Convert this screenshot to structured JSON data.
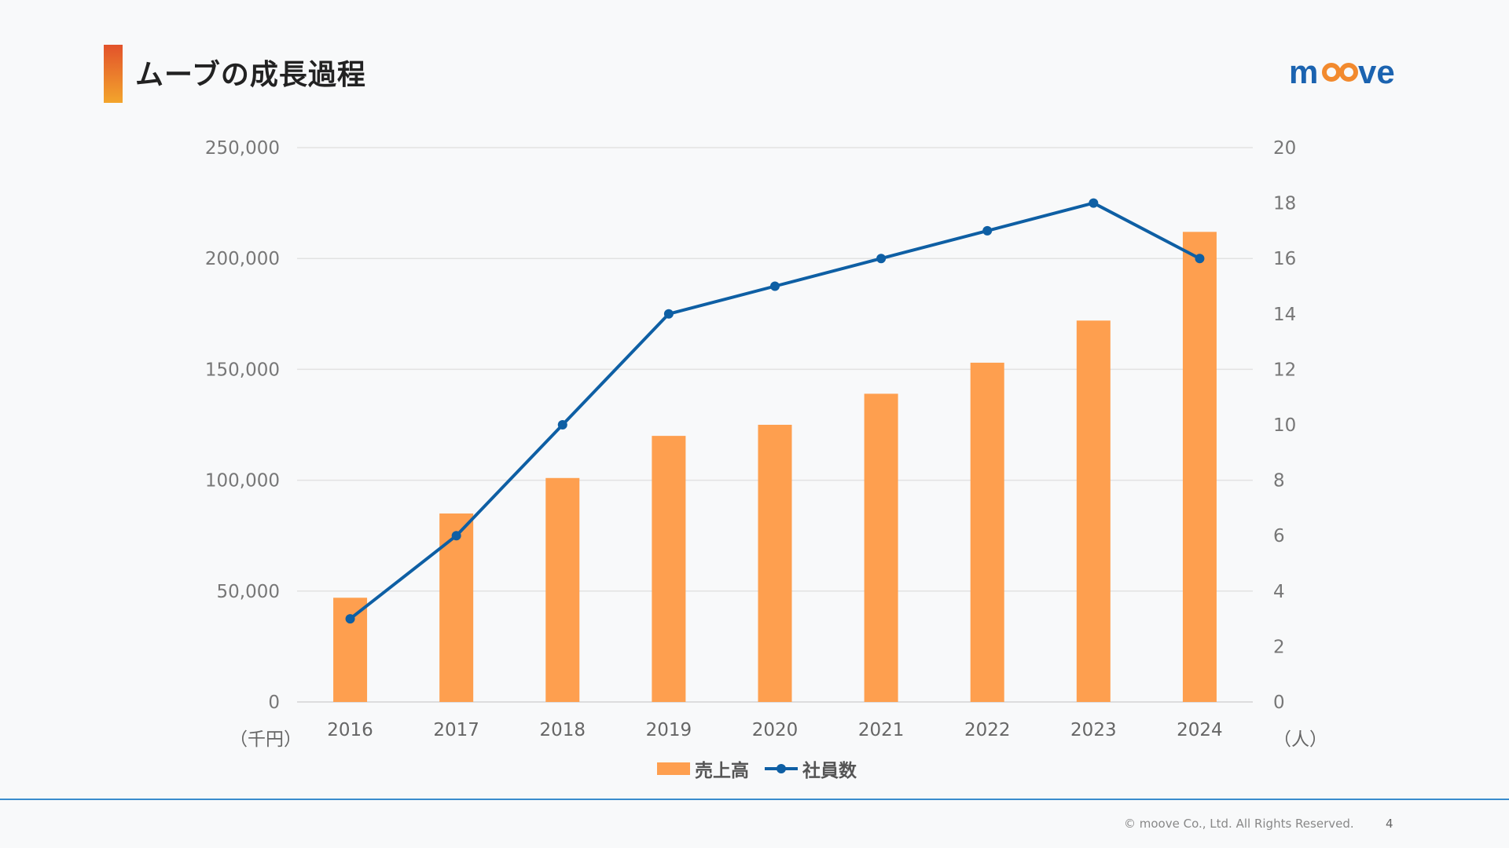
{
  "page": {
    "title": "ムーブの成長過程",
    "logo_text": "moove",
    "footer": {
      "copyright": "© moove Co., Ltd. All Rights Reserved.",
      "page_number": "4"
    }
  },
  "colors": {
    "bar": "#fe9f4f",
    "line": "#0e5fa4",
    "title_accent_top": "#e2522b",
    "title_accent_bottom": "#f3a52c",
    "logo_blue": "#1b63b0",
    "logo_orange": "#f28a2e",
    "footer_rule": "#3a8ccd"
  },
  "chart_data": {
    "type": "bar",
    "categories": [
      "2016",
      "2017",
      "2018",
      "2019",
      "2020",
      "2021",
      "2022",
      "2023",
      "2024"
    ],
    "series": [
      {
        "name": "売上高",
        "type": "bar",
        "axis": "left",
        "values": [
          47000,
          85000,
          101000,
          120000,
          125000,
          139000,
          153000,
          172000,
          212000
        ]
      },
      {
        "name": "社員数",
        "type": "line",
        "axis": "right",
        "values": [
          3,
          6,
          10,
          14,
          15,
          16,
          17,
          18,
          16
        ]
      }
    ],
    "y_left": {
      "range": [
        0,
        250000
      ],
      "ticks": [
        "0",
        "50,000",
        "100,000",
        "150,000",
        "200,000",
        "250,000"
      ],
      "unit": "（千円）"
    },
    "y_right": {
      "range": [
        0,
        20
      ],
      "ticks": [
        "0",
        "2",
        "4",
        "6",
        "8",
        "10",
        "12",
        "14",
        "16",
        "18",
        "20"
      ],
      "unit": "（人）"
    },
    "grid": true,
    "legend": "bottom"
  }
}
